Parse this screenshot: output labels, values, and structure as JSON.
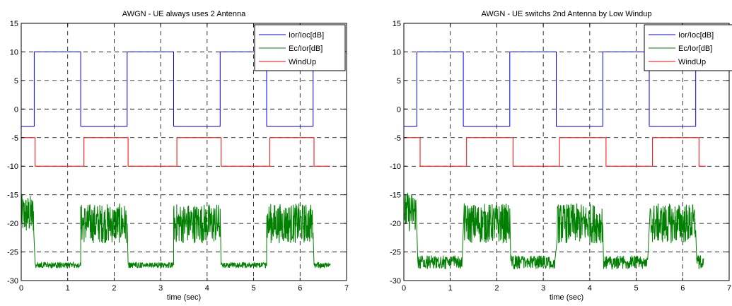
{
  "chart_data": [
    {
      "type": "line",
      "title": "AWGN - UE always uses 2 Antenna",
      "xlabel": "time (sec)",
      "ylabel": "",
      "xlim": [
        0,
        7
      ],
      "ylim": [
        -30,
        15
      ],
      "xticks": [
        0,
        1,
        2,
        3,
        4,
        5,
        6,
        7
      ],
      "yticks": [
        15,
        10,
        5,
        0,
        -5,
        -10,
        -15,
        -20,
        -25,
        -30
      ],
      "grid": true,
      "legend_position": "top-right",
      "series": [
        {
          "name": "Ior/Ioc[dB]",
          "color": "#0000ff",
          "x": [
            0,
            0.28,
            0.28,
            1.28,
            1.28,
            2.28,
            2.28,
            3.28,
            3.28,
            4.28,
            4.28,
            5.28,
            5.28,
            6.28,
            6.28,
            6.65
          ],
          "y": [
            -3,
            -3,
            10,
            10,
            -3,
            -3,
            10,
            10,
            -3,
            -3,
            10,
            10,
            -3,
            -3,
            10,
            10
          ]
        },
        {
          "name": "Ec/Ior[dB]",
          "color": "#008000",
          "segments": [
            {
              "kind": "noisy",
              "x0": 0,
              "x1": 0.27,
              "center": -18.5,
              "amp": 3.5
            },
            {
              "kind": "flat",
              "x0": 0.3,
              "x1": 1.28,
              "level": -27.3,
              "amp": 0.5
            },
            {
              "kind": "noisy",
              "x0": 1.28,
              "x1": 2.28,
              "center": -20,
              "amp": 3.5
            },
            {
              "kind": "flat",
              "x0": 2.3,
              "x1": 3.28,
              "level": -27.3,
              "amp": 0.5
            },
            {
              "kind": "noisy",
              "x0": 3.28,
              "x1": 4.28,
              "center": -20,
              "amp": 3.5
            },
            {
              "kind": "flat",
              "x0": 4.3,
              "x1": 5.28,
              "level": -27.3,
              "amp": 0.5
            },
            {
              "kind": "noisy",
              "x0": 5.28,
              "x1": 6.28,
              "center": -20,
              "amp": 3.5
            },
            {
              "kind": "flat",
              "x0": 6.3,
              "x1": 6.65,
              "level": -27.3,
              "amp": 0.5
            }
          ]
        },
        {
          "name": "WindUp",
          "color": "#ff0000",
          "x": [
            0,
            0.3,
            0.3,
            1.35,
            1.35,
            2.3,
            2.3,
            3.35,
            3.35,
            4.3,
            4.3,
            5.35,
            5.35,
            6.3,
            6.3,
            6.65
          ],
          "y": [
            -5,
            -5,
            -10,
            -10,
            -5,
            -5,
            -10,
            -10,
            -5,
            -5,
            -10,
            -10,
            -5,
            -5,
            -10,
            -10
          ]
        }
      ]
    },
    {
      "type": "line",
      "title": "AWGN - UE switchs 2nd Antenna by Low Windup",
      "xlabel": "time (sec)",
      "ylabel": "",
      "xlim": [
        0,
        7
      ],
      "ylim": [
        -30,
        15
      ],
      "xticks": [
        0,
        1,
        2,
        3,
        4,
        5,
        6,
        7
      ],
      "yticks": [
        15,
        10,
        5,
        0,
        -5,
        -10,
        -15,
        -20,
        -25,
        -30
      ],
      "grid": true,
      "legend_position": "top-right",
      "series": [
        {
          "name": "Ior/Ioc[dB]",
          "color": "#0000ff",
          "x": [
            0,
            0.28,
            0.28,
            1.28,
            1.28,
            2.28,
            2.28,
            3.28,
            3.28,
            4.28,
            4.28,
            5.28,
            5.28,
            6.28,
            6.28,
            6.65
          ],
          "y": [
            -3,
            -3,
            10,
            10,
            -3,
            -3,
            10,
            10,
            -3,
            -3,
            10,
            10,
            -3,
            -3,
            10,
            10
          ]
        },
        {
          "name": "Ec/Ior[dB]",
          "color": "#008000",
          "segments": [
            {
              "kind": "noisy",
              "x0": 0,
              "x1": 0.27,
              "center": -18,
              "amp": 3.5
            },
            {
              "kind": "flat",
              "x0": 0.3,
              "x1": 1.25,
              "level": -26.8,
              "amp": 1.2
            },
            {
              "kind": "noisy",
              "x0": 1.3,
              "x1": 2.28,
              "center": -20,
              "amp": 3.5
            },
            {
              "kind": "flat",
              "x0": 2.3,
              "x1": 3.25,
              "level": -26.8,
              "amp": 1.2
            },
            {
              "kind": "noisy",
              "x0": 3.3,
              "x1": 4.28,
              "center": -20,
              "amp": 3.5
            },
            {
              "kind": "flat",
              "x0": 4.3,
              "x1": 5.25,
              "level": -26.8,
              "amp": 1.2
            },
            {
              "kind": "noisy",
              "x0": 5.3,
              "x1": 6.28,
              "center": -20,
              "amp": 3.5
            },
            {
              "kind": "flat",
              "x0": 6.3,
              "x1": 6.45,
              "level": -26.8,
              "amp": 1.2
            }
          ]
        },
        {
          "name": "WindUp",
          "color": "#ff0000",
          "x": [
            0,
            0.35,
            0.35,
            1.35,
            1.35,
            2.35,
            2.35,
            3.35,
            3.35,
            4.35,
            4.35,
            5.35,
            5.35,
            6.35,
            6.35,
            6.5
          ],
          "y": [
            -5,
            -5,
            -10,
            -10,
            -5,
            -5,
            -10,
            -10,
            -5,
            -5,
            -10,
            -10,
            -5,
            -5,
            -10,
            -10
          ]
        }
      ]
    }
  ]
}
